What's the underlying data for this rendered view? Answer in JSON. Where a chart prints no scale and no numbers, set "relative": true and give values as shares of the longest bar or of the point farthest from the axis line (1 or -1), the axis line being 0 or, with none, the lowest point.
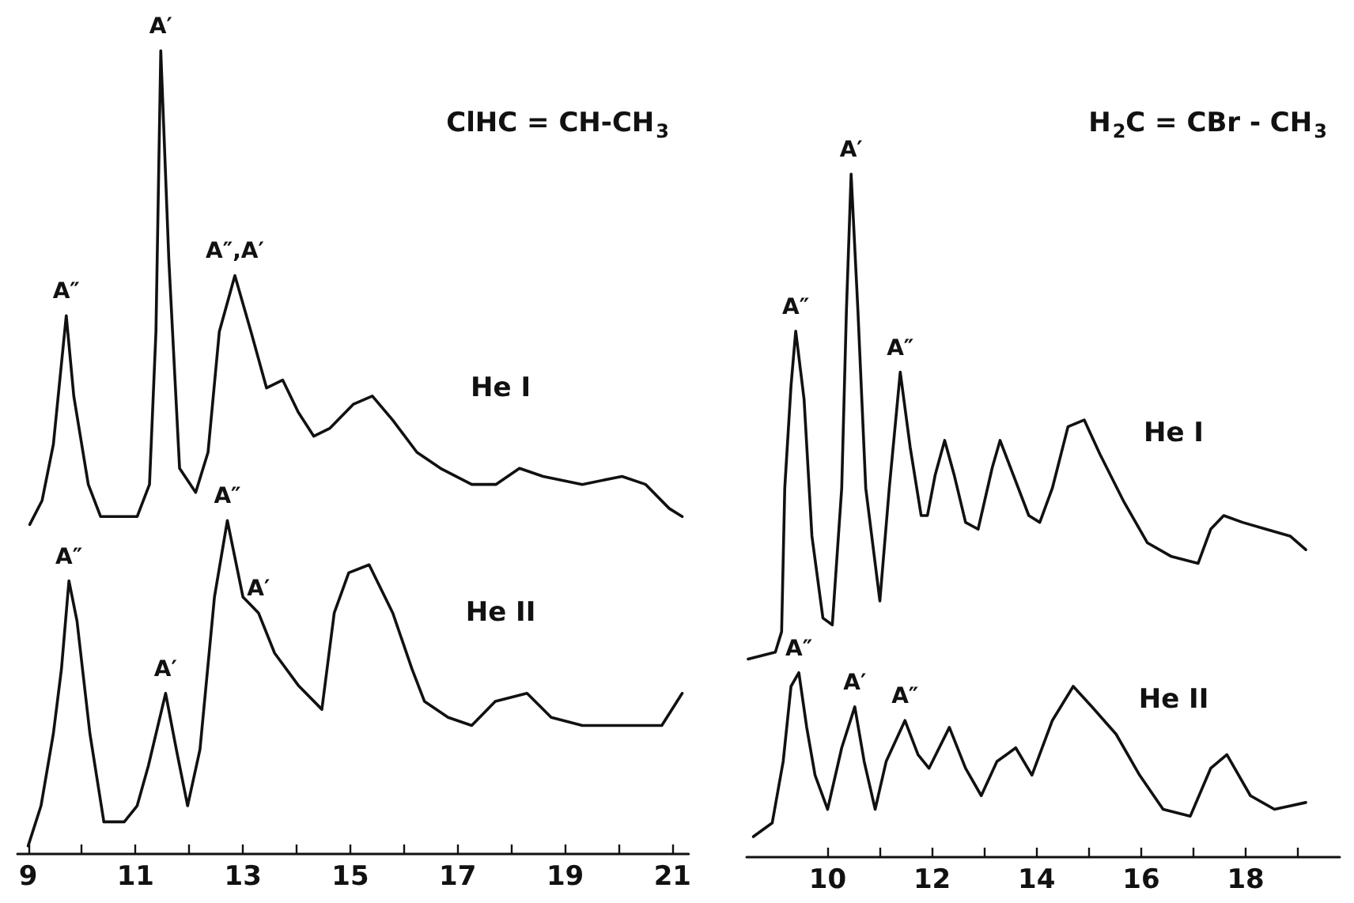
{
  "chart_data": [
    {
      "type": "line",
      "title": "ClHC = CH-CH$_{3}$",
      "relative": true,
      "xlim": [
        8.8,
        21.3
      ],
      "xticks": [
        9,
        {
          "value": 10,
          "label": null
        },
        11,
        {
          "value": 12,
          "label": null
        },
        13,
        {
          "value": 14,
          "label": null
        },
        15,
        {
          "value": 16,
          "label": null
        },
        17,
        {
          "value": 18,
          "label": null
        },
        19,
        {
          "value": 20,
          "label": null
        },
        21
      ],
      "series": [
        {
          "name": "He I",
          "color": "#111111",
          "x": [
            9.03,
            9.26,
            9.47,
            9.65,
            9.71,
            9.85,
            10.12,
            10.35,
            11.03,
            11.26,
            11.38,
            11.47,
            11.62,
            11.82,
            12.12,
            12.35,
            12.56,
            12.85,
            13.15,
            13.44,
            13.74,
            14.03,
            14.32,
            14.62,
            15.06,
            15.41,
            15.79,
            16.24,
            16.68,
            17.26,
            17.71,
            18.15,
            18.59,
            19.32,
            20.06,
            20.5,
            20.94,
            21.18
          ],
          "values": [
            0.41,
            0.44,
            0.51,
            0.63,
            0.67,
            0.57,
            0.46,
            0.42,
            0.42,
            0.46,
            0.65,
            1.0,
            0.74,
            0.48,
            0.45,
            0.5,
            0.65,
            0.72,
            0.65,
            0.58,
            0.59,
            0.55,
            0.52,
            0.53,
            0.56,
            0.57,
            0.54,
            0.5,
            0.48,
            0.46,
            0.46,
            0.48,
            0.47,
            0.46,
            0.47,
            0.46,
            0.43,
            0.42
          ]
        },
        {
          "name": "He II",
          "color": "#111111",
          "x": [
            9.0,
            9.24,
            9.47,
            9.62,
            9.76,
            9.91,
            10.15,
            10.41,
            10.79,
            11.03,
            11.24,
            11.56,
            11.76,
            11.97,
            12.2,
            12.47,
            12.71,
            13.0,
            13.29,
            13.59,
            14.03,
            14.47,
            14.7,
            14.97,
            15.35,
            15.79,
            16.15,
            16.38,
            16.82,
            17.26,
            17.7,
            18.29,
            18.74,
            19.32,
            20.06,
            20.8,
            21.18
          ],
          "values": [
            0.01,
            0.06,
            0.15,
            0.23,
            0.34,
            0.29,
            0.15,
            0.04,
            0.04,
            0.06,
            0.11,
            0.2,
            0.13,
            0.06,
            0.13,
            0.32,
            0.415,
            0.32,
            0.3,
            0.25,
            0.21,
            0.18,
            0.3,
            0.35,
            0.36,
            0.3,
            0.23,
            0.19,
            0.17,
            0.16,
            0.19,
            0.2,
            0.17,
            0.16,
            0.16,
            0.16,
            0.2
          ]
        }
      ],
      "annotations": [
        {
          "text": "A″",
          "x": 9.71,
          "y": 0.67
        },
        {
          "text": "A′",
          "x": 11.47,
          "y": 1.0
        },
        {
          "text": "A″,A′",
          "x": 12.85,
          "y": 0.72
        },
        {
          "text": "A″",
          "x": 9.76,
          "y": 0.34
        },
        {
          "text": "A′",
          "x": 11.56,
          "y": 0.2
        },
        {
          "text": "A″",
          "x": 12.71,
          "y": 0.415
        },
        {
          "text": "A′",
          "x": 13.29,
          "y": 0.3
        }
      ]
    },
    {
      "type": "line",
      "title": "H$_{2}$C = CBr - CH$_{3}$",
      "relative": true,
      "xlim": [
        8.45,
        19.8
      ],
      "xticks": [
        10,
        {
          "value": 11,
          "label": null
        },
        12,
        {
          "value": 13,
          "label": null
        },
        14,
        {
          "value": 15,
          "label": null
        },
        16,
        {
          "value": 17,
          "label": null
        },
        18,
        {
          "value": 19,
          "label": null
        }
      ],
      "series": [
        {
          "name": "He I",
          "color": "#111111",
          "x": [
            8.48,
            9.0,
            9.12,
            9.18,
            9.3,
            9.39,
            9.55,
            9.7,
            9.91,
            10.09,
            10.27,
            10.36,
            10.45,
            10.58,
            10.73,
            11.0,
            11.18,
            11.39,
            11.58,
            11.79,
            11.91,
            12.06,
            12.24,
            12.42,
            12.64,
            12.88,
            13.15,
            13.3,
            13.55,
            13.85,
            14.06,
            14.3,
            14.6,
            14.91,
            15.21,
            15.67,
            16.12,
            16.58,
            17.09,
            17.33,
            17.58,
            17.94,
            18.39,
            18.85,
            19.15
          ],
          "values": [
            0.29,
            0.3,
            0.33,
            0.54,
            0.69,
            0.77,
            0.67,
            0.47,
            0.35,
            0.34,
            0.54,
            0.8,
            1.0,
            0.8,
            0.54,
            0.375,
            0.54,
            0.71,
            0.6,
            0.5,
            0.5,
            0.56,
            0.61,
            0.56,
            0.49,
            0.48,
            0.57,
            0.61,
            0.56,
            0.5,
            0.49,
            0.54,
            0.63,
            0.64,
            0.59,
            0.52,
            0.46,
            0.44,
            0.43,
            0.48,
            0.5,
            0.49,
            0.48,
            0.47,
            0.45
          ]
        },
        {
          "name": "He II",
          "color": "#111111",
          "x": [
            8.58,
            8.94,
            9.15,
            9.3,
            9.45,
            9.6,
            9.76,
            10.0,
            10.27,
            10.52,
            10.7,
            10.91,
            11.12,
            11.48,
            11.73,
            11.94,
            12.33,
            12.64,
            12.94,
            13.24,
            13.6,
            13.91,
            14.3,
            14.7,
            15.06,
            15.52,
            15.97,
            16.42,
            16.94,
            17.33,
            17.64,
            18.09,
            18.55,
            19.15
          ],
          "values": [
            0.03,
            0.05,
            0.14,
            0.25,
            0.27,
            0.19,
            0.12,
            0.07,
            0.16,
            0.22,
            0.14,
            0.07,
            0.14,
            0.2,
            0.15,
            0.13,
            0.19,
            0.13,
            0.09,
            0.14,
            0.16,
            0.12,
            0.2,
            0.25,
            0.22,
            0.18,
            0.12,
            0.07,
            0.06,
            0.13,
            0.15,
            0.09,
            0.07,
            0.08
          ]
        }
      ],
      "annotations": [
        {
          "text": "A″",
          "x": 9.39,
          "y": 0.77
        },
        {
          "text": "A′",
          "x": 10.45,
          "y": 1.0
        },
        {
          "text": "A″",
          "x": 11.39,
          "y": 0.71
        },
        {
          "text": "A″",
          "x": 9.45,
          "y": 0.27
        },
        {
          "text": "A′",
          "x": 10.52,
          "y": 0.22
        },
        {
          "text": "A″",
          "x": 11.48,
          "y": 0.2
        }
      ]
    }
  ]
}
